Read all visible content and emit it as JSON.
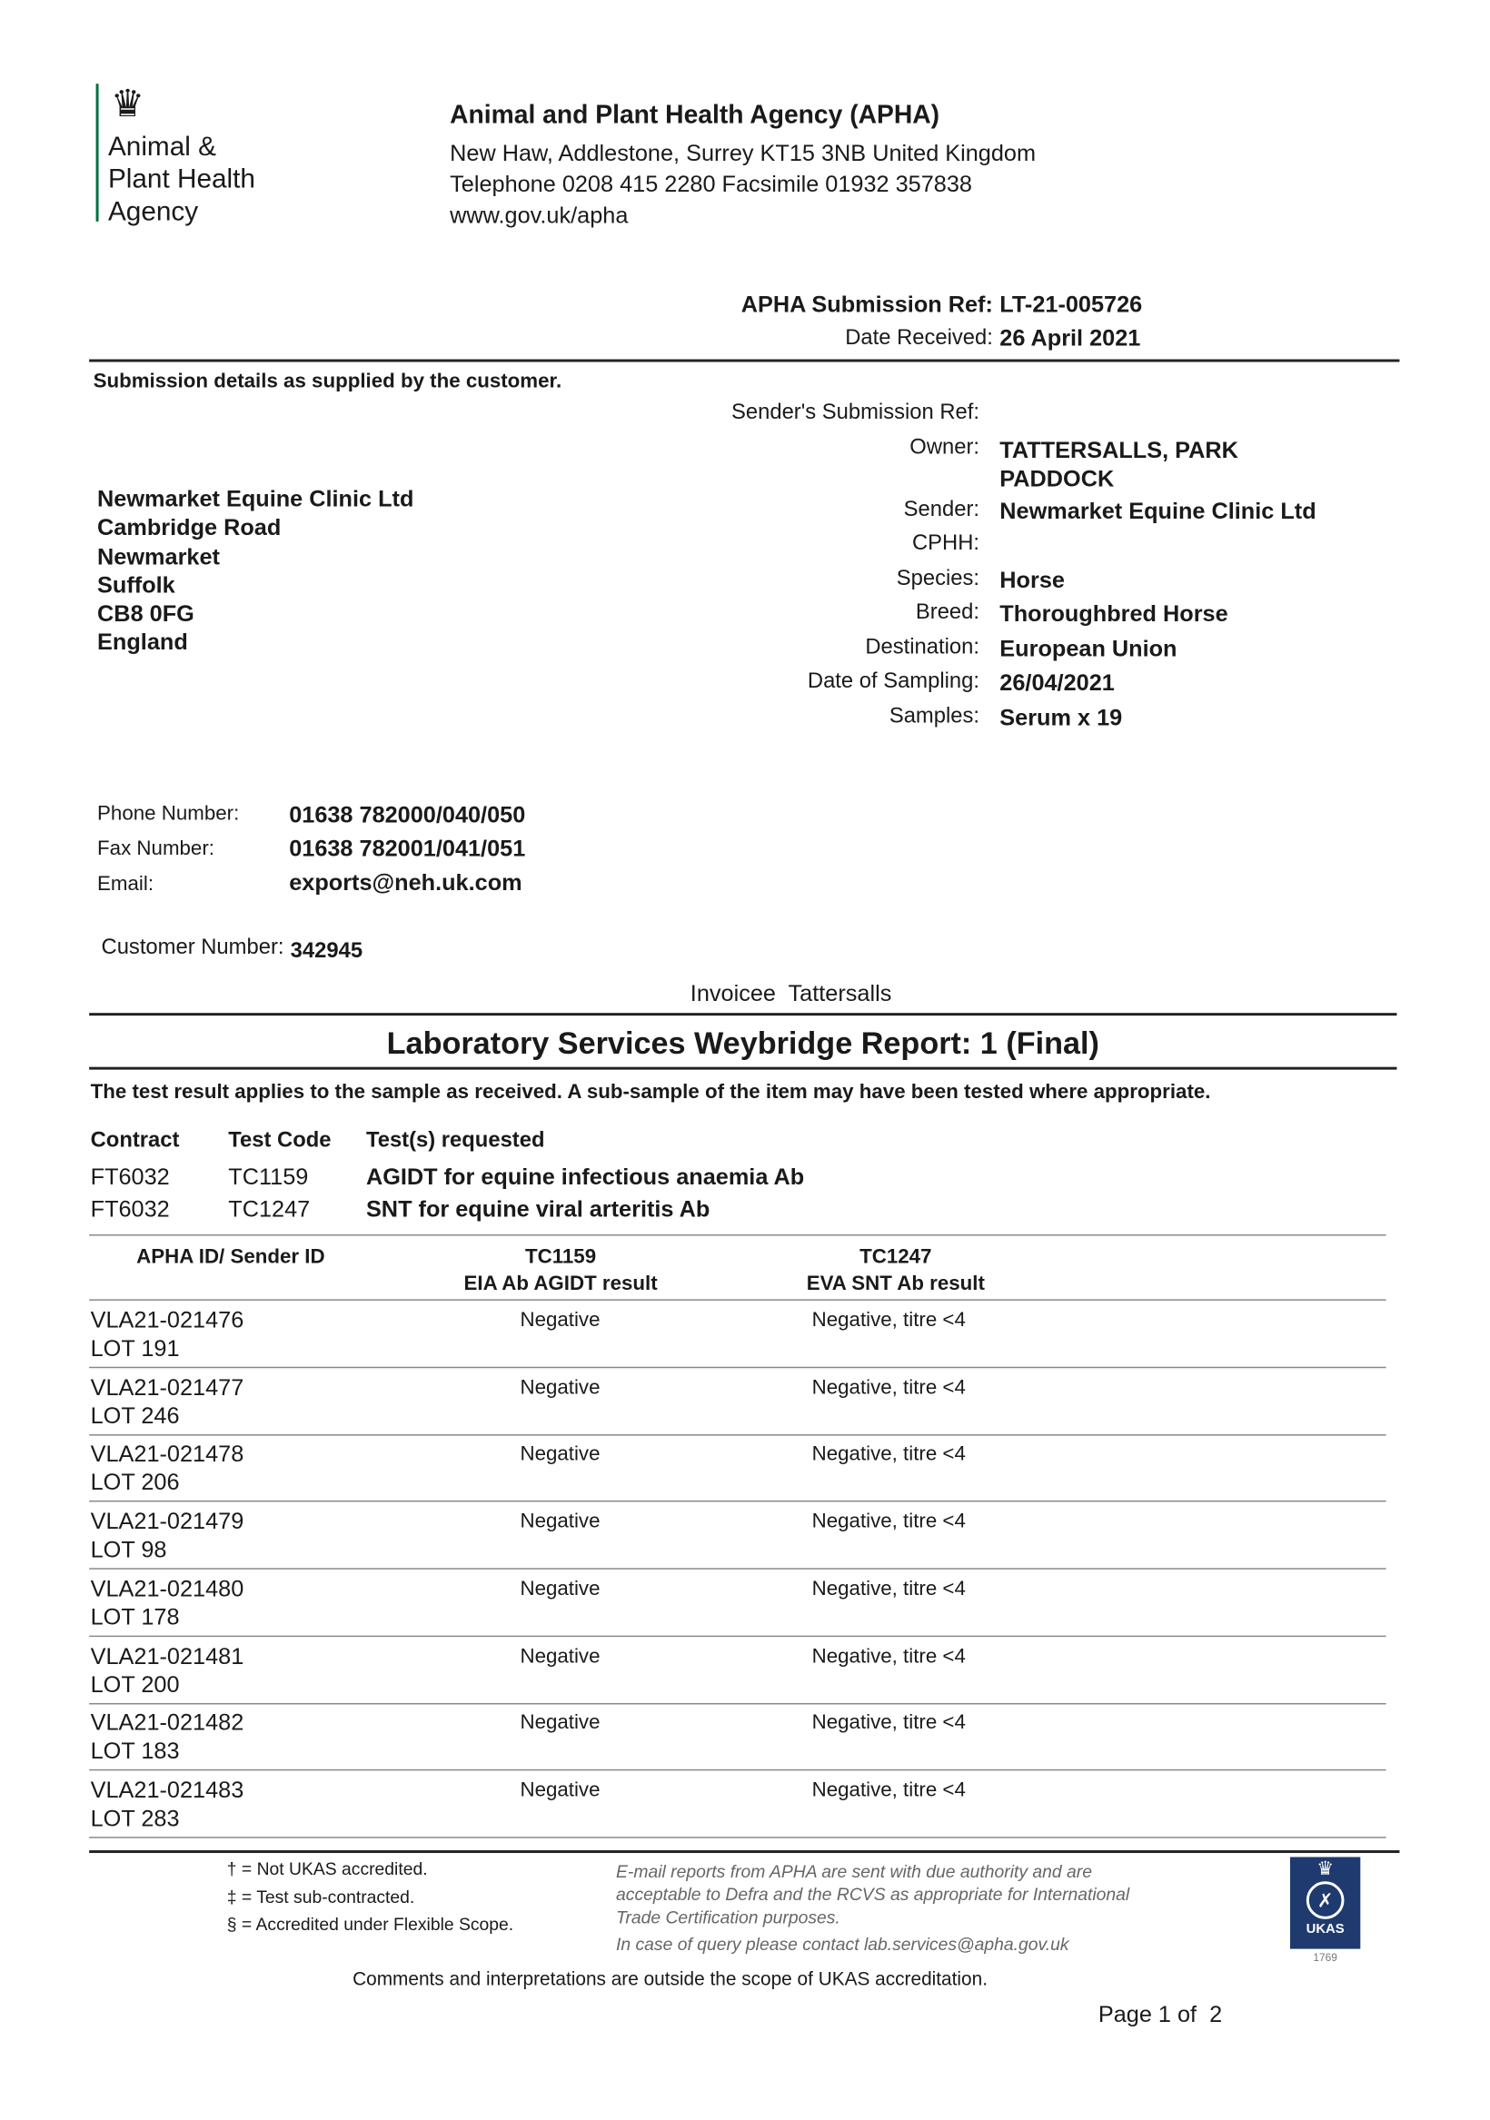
{
  "logo": {
    "lines": [
      "Animal &",
      "Plant Health",
      "Agency"
    ],
    "accent": "#00703c"
  },
  "header": {
    "org": "Animal and Plant Health Agency (APHA)",
    "address": "New Haw, Addlestone, Surrey KT15 3NB United Kingdom",
    "phone": "Telephone 0208 415 2280 Facsimile 01932 357838",
    "web": "www.gov.uk/apha"
  },
  "refs": {
    "sub_ref_label": "APHA Submission Ref:",
    "sub_ref": "LT-21-005726",
    "date_label": "Date Received:",
    "date": "26 April 2021"
  },
  "submission": {
    "heading": "Submission details as supplied by the customer.",
    "address": [
      "Newmarket Equine Clinic Ltd",
      "Cambridge Road",
      "Newmarket",
      "Suffolk",
      "CB8 0FG",
      "England"
    ],
    "fields": [
      {
        "label": "Sender's Submission Ref:",
        "value": ""
      },
      {
        "label": "Owner:",
        "value": "TATTERSALLS, PARK PADDOCK"
      },
      {
        "label": "Sender:",
        "value": "Newmarket Equine Clinic Ltd"
      },
      {
        "label": "CPHH:",
        "value": ""
      },
      {
        "label": "Species:",
        "value": "Horse"
      },
      {
        "label": "Breed:",
        "value": "Thoroughbred Horse"
      },
      {
        "label": "Destination:",
        "value": "European Union"
      },
      {
        "label": "Date of Sampling:",
        "value": "26/04/2021"
      },
      {
        "label": "Samples:",
        "value": "Serum x 19"
      }
    ],
    "owner_line1": "TATTERSALLS, PARK",
    "owner_line2": "PADDOCK",
    "contact": [
      {
        "label": "Phone Number:",
        "value": "01638 782000/040/050"
      },
      {
        "label": "Fax Number:",
        "value": "01638 782001/041/051"
      },
      {
        "label": "Email:",
        "value": "exports@neh.uk.com"
      }
    ],
    "customer_label": "Customer Number:",
    "customer_number": "342945",
    "invoicee": "Invoicee  Tattersalls"
  },
  "report": {
    "title": "Laboratory Services Weybridge Report: 1 (Final)",
    "note": "The test result applies to the sample as received. A sub-sample of the item may have been tested where appropriate.",
    "tests_headers": [
      "Contract",
      "Test Code",
      "Test(s) requested"
    ],
    "tests": [
      [
        "FT6032",
        "TC1159",
        "AGIDT for equine infectious anaemia Ab"
      ],
      [
        "FT6032",
        "TC1247",
        "SNT for equine viral arteritis Ab"
      ]
    ],
    "table_headers": [
      [
        "APHA ID/ Sender ID",
        ""
      ],
      [
        "TC1159",
        "EIA Ab AGIDT result"
      ],
      [
        "TC1247",
        "EVA SNT Ab result"
      ]
    ],
    "rows": [
      [
        "VLA21-021476",
        "LOT 191",
        "Negative",
        "Negative, titre <4"
      ],
      [
        "VLA21-021477",
        "LOT 246",
        "Negative",
        "Negative, titre <4"
      ],
      [
        "VLA21-021478",
        "LOT 206",
        "Negative",
        "Negative, titre <4"
      ],
      [
        "VLA21-021479",
        "LOT 98",
        "Negative",
        "Negative, titre <4"
      ],
      [
        "VLA21-021480",
        "LOT 178",
        "Negative",
        "Negative, titre <4"
      ],
      [
        "VLA21-021481",
        "LOT 200",
        "Negative",
        "Negative, titre <4"
      ],
      [
        "VLA21-021482",
        "LOT 183",
        "Negative",
        "Negative, titre <4"
      ],
      [
        "VLA21-021483",
        "LOT 283",
        "Negative",
        "Negative, titre <4"
      ]
    ]
  },
  "footer": {
    "keys": [
      "† = Not UKAS accredited.",
      "‡ = Test sub-contracted.",
      "§ = Accredited under Flexible Scope."
    ],
    "email_note": [
      "E-mail reports from APHA are sent with due authority and are",
      "acceptable to Defra and the RCVS as appropriate for International",
      "Trade Certification purposes."
    ],
    "query": "In case of query please contact lab.services@apha.gov.uk",
    "ukas": "UKAS",
    "ukas_number": "1769",
    "ukas_color": "#1f3a6e",
    "comments": "Comments and interpretations are outside the scope of UKAS accreditation.",
    "page": "Page 1 of  2"
  }
}
